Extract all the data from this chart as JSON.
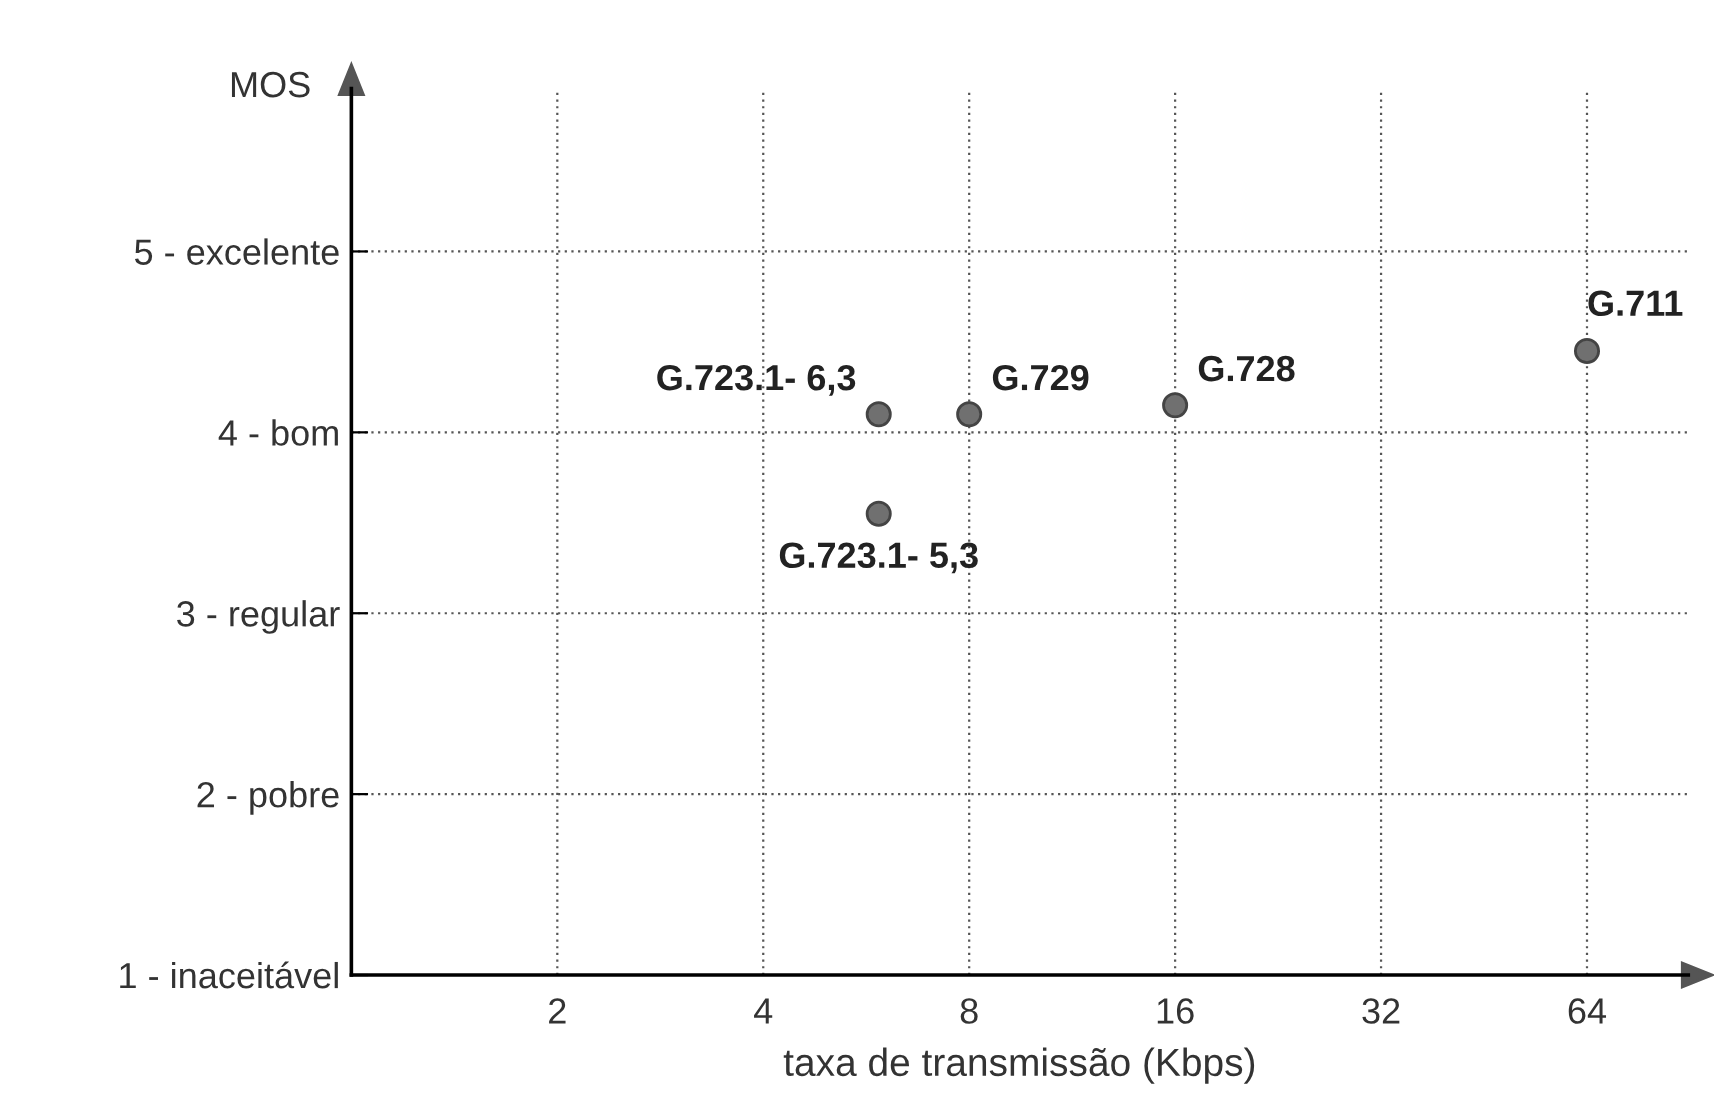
{
  "chart_data": {
    "type": "scatter",
    "xlabel": "taxa de transmissão (Kbps)",
    "ylabel": "MOS",
    "x": [
      5.9,
      8,
      16,
      64,
      5.9
    ],
    "values": [
      4.1,
      4.1,
      4.15,
      4.45,
      3.55
    ],
    "color": "#707070",
    "marker": "circle",
    "log": "x",
    "grid": true,
    "xlim": [
      1,
      90
    ],
    "xticks": [
      2,
      4,
      8,
      16,
      32,
      64
    ],
    "ylim": [
      1,
      5.9
    ],
    "yticks": [
      {
        "value": 1,
        "label": "1 - inaceitável"
      },
      {
        "value": 2,
        "label": "2 - pobre"
      },
      {
        "value": 3,
        "label": "3 - regular"
      },
      {
        "value": 4,
        "label": "4 - bom"
      },
      {
        "value": 5,
        "label": "5 - excelente"
      }
    ],
    "annotations": [
      {
        "text": "G.723.1- 6,3",
        "x": 5.9,
        "y": 4.1
      },
      {
        "text": "G.729",
        "x": 8,
        "y": 4.1
      },
      {
        "text": "G.728",
        "x": 16,
        "y": 4.15
      },
      {
        "text": "G.711",
        "x": 64,
        "y": 4.45
      },
      {
        "text": "G.723.1- 5,3",
        "x": 5.9,
        "y": 3.55
      }
    ]
  }
}
